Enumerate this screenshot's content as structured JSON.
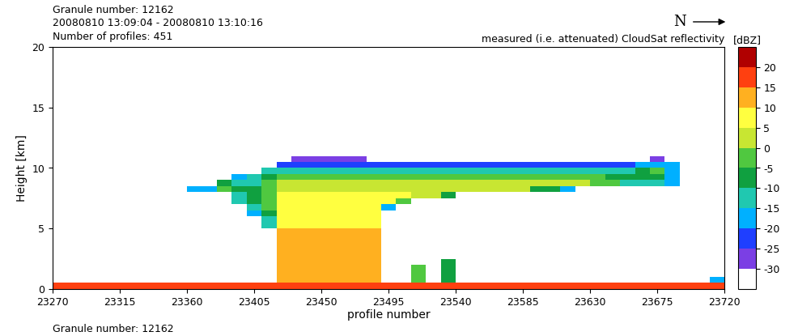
{
  "chart_data": {
    "type": "heatmap",
    "title": "measured (i.e. attenuated) CloudSat reflectivity",
    "header": [
      "Granule number: 12162",
      "20080810 13:09:04 - 20080810 13:10:16",
      "Number of profiles: 451"
    ],
    "footer": "Granule number: 12162",
    "north_label": "N",
    "x_label": "profile number",
    "y_label": "Height [km]",
    "xlim": [
      23270,
      23720
    ],
    "ylim": [
      0,
      20
    ],
    "xticks": [
      23270,
      23315,
      23360,
      23405,
      23450,
      23495,
      23540,
      23585,
      23630,
      23675,
      23720
    ],
    "yticks": [
      0,
      5,
      10,
      15,
      20
    ],
    "x_edges": [
      23270,
      23280,
      23290,
      23300,
      23310,
      23320,
      23330,
      23340,
      23350,
      23360,
      23370,
      23380,
      23390,
      23400,
      23410,
      23420,
      23430,
      23440,
      23450,
      23460,
      23470,
      23480,
      23490,
      23500,
      23510,
      23520,
      23530,
      23540,
      23550,
      23560,
      23570,
      23580,
      23590,
      23600,
      23610,
      23620,
      23630,
      23640,
      23650,
      23660,
      23670,
      23680,
      23690,
      23700,
      23710,
      23720
    ],
    "y_edges": [
      0,
      0.5,
      1,
      1.5,
      2,
      2.5,
      3,
      3.5,
      4,
      4.5,
      5,
      5.5,
      6,
      6.5,
      7,
      7.5,
      8,
      8.5,
      9,
      9.5,
      10,
      10.5,
      11
    ],
    "cells": [
      [
        17,
        17,
        17,
        17,
        17,
        17,
        17,
        17,
        17,
        17,
        17,
        17,
        17,
        17,
        17,
        17,
        17,
        17,
        17,
        17,
        17,
        17,
        17,
        17,
        17,
        17,
        17,
        17,
        17,
        17,
        17,
        17,
        17,
        17,
        17,
        17,
        17,
        17,
        17,
        17,
        17,
        17,
        17,
        17,
        17
      ],
      [
        null,
        null,
        null,
        null,
        null,
        null,
        null,
        null,
        null,
        null,
        null,
        null,
        null,
        null,
        null,
        10,
        12,
        12,
        12,
        12,
        12,
        10,
        null,
        null,
        -5,
        null,
        -8,
        null,
        null,
        null,
        null,
        null,
        null,
        null,
        null,
        null,
        null,
        null,
        null,
        null,
        null,
        null,
        null,
        null,
        -20
      ],
      [
        null,
        null,
        null,
        null,
        null,
        null,
        null,
        null,
        null,
        null,
        null,
        null,
        null,
        null,
        null,
        10,
        12,
        12,
        12,
        12,
        12,
        10,
        null,
        null,
        -5,
        null,
        -8,
        null,
        null,
        null,
        null,
        null,
        null,
        null,
        null,
        null,
        null,
        null,
        null,
        null,
        null,
        null,
        null,
        null,
        null
      ],
      [
        null,
        null,
        null,
        null,
        null,
        null,
        null,
        null,
        null,
        null,
        null,
        null,
        null,
        null,
        null,
        10,
        12,
        12,
        12,
        12,
        12,
        10,
        null,
        null,
        -5,
        null,
        -8,
        null,
        null,
        null,
        null,
        null,
        null,
        null,
        null,
        null,
        null,
        null,
        null,
        null,
        null,
        null,
        null,
        null,
        null
      ],
      [
        null,
        null,
        null,
        null,
        null,
        null,
        null,
        null,
        null,
        null,
        null,
        null,
        null,
        null,
        null,
        10,
        12,
        12,
        12,
        12,
        12,
        10,
        null,
        null,
        null,
        null,
        -10,
        null,
        null,
        null,
        null,
        null,
        null,
        null,
        null,
        null,
        null,
        null,
        null,
        null,
        null,
        null,
        null,
        null,
        null
      ],
      [
        null,
        null,
        null,
        null,
        null,
        null,
        null,
        null,
        null,
        null,
        null,
        null,
        null,
        null,
        null,
        10,
        12,
        12,
        12,
        12,
        12,
        10,
        null,
        null,
        null,
        null,
        null,
        null,
        null,
        null,
        null,
        null,
        null,
        null,
        null,
        null,
        null,
        null,
        null,
        null,
        null,
        null,
        null,
        null,
        null
      ],
      [
        null,
        null,
        null,
        null,
        null,
        null,
        null,
        null,
        null,
        null,
        null,
        null,
        null,
        null,
        null,
        10,
        12,
        12,
        12,
        12,
        12,
        10,
        null,
        null,
        null,
        null,
        null,
        null,
        null,
        null,
        null,
        null,
        null,
        null,
        null,
        null,
        null,
        null,
        null,
        null,
        null,
        null,
        null,
        null,
        null
      ],
      [
        null,
        null,
        null,
        null,
        null,
        null,
        null,
        null,
        null,
        null,
        null,
        null,
        null,
        null,
        null,
        10,
        12,
        12,
        12,
        12,
        12,
        10,
        null,
        null,
        null,
        null,
        null,
        null,
        null,
        null,
        null,
        null,
        null,
        null,
        null,
        null,
        null,
        null,
        null,
        null,
        null,
        null,
        null,
        null,
        null
      ],
      [
        null,
        null,
        null,
        null,
        null,
        null,
        null,
        null,
        null,
        null,
        null,
        null,
        null,
        null,
        null,
        10,
        12,
        12,
        12,
        12,
        12,
        10,
        null,
        null,
        null,
        null,
        null,
        null,
        null,
        null,
        null,
        null,
        null,
        null,
        null,
        null,
        null,
        null,
        null,
        null,
        null,
        null,
        null,
        null,
        null
      ],
      [
        null,
        null,
        null,
        null,
        null,
        null,
        null,
        null,
        null,
        null,
        null,
        null,
        null,
        null,
        null,
        10,
        12,
        12,
        12,
        12,
        12,
        10,
        null,
        null,
        null,
        null,
        null,
        null,
        null,
        null,
        null,
        null,
        null,
        null,
        null,
        null,
        null,
        null,
        null,
        null,
        null,
        null,
        null,
        null,
        null
      ],
      [
        null,
        null,
        null,
        null,
        null,
        null,
        null,
        null,
        null,
        null,
        null,
        null,
        null,
        null,
        -15,
        8,
        8,
        8,
        8,
        8,
        8,
        8,
        null,
        null,
        null,
        null,
        null,
        null,
        null,
        null,
        null,
        null,
        null,
        null,
        null,
        null,
        null,
        null,
        null,
        null,
        null,
        null,
        null,
        null,
        null
      ],
      [
        null,
        null,
        null,
        null,
        null,
        null,
        null,
        null,
        null,
        null,
        null,
        null,
        null,
        null,
        -15,
        8,
        8,
        8,
        8,
        8,
        8,
        8,
        null,
        null,
        null,
        null,
        null,
        null,
        null,
        null,
        null,
        null,
        null,
        null,
        null,
        null,
        null,
        null,
        null,
        null,
        null,
        null,
        null,
        null,
        null
      ],
      [
        null,
        null,
        null,
        null,
        null,
        null,
        null,
        null,
        null,
        null,
        null,
        null,
        null,
        -18,
        -10,
        8,
        8,
        8,
        8,
        8,
        8,
        8,
        null,
        null,
        null,
        null,
        null,
        null,
        null,
        null,
        null,
        null,
        null,
        null,
        null,
        null,
        null,
        null,
        null,
        null,
        null,
        null,
        null,
        null,
        null
      ],
      [
        null,
        null,
        null,
        null,
        null,
        null,
        null,
        null,
        null,
        null,
        null,
        null,
        null,
        -15,
        -5,
        6,
        6,
        6,
        6,
        6,
        6,
        6,
        -20,
        null,
        null,
        null,
        null,
        null,
        null,
        null,
        null,
        null,
        null,
        null,
        null,
        null,
        null,
        null,
        null,
        null,
        null,
        null,
        null,
        null,
        null
      ],
      [
        null,
        null,
        null,
        null,
        null,
        null,
        null,
        null,
        null,
        null,
        null,
        null,
        -15,
        -10,
        -5,
        5,
        5,
        5,
        5,
        5,
        5,
        5,
        5,
        -5,
        null,
        null,
        null,
        null,
        null,
        null,
        null,
        null,
        null,
        null,
        null,
        null,
        null,
        null,
        null,
        null,
        null,
        null,
        null,
        null,
        null
      ],
      [
        null,
        null,
        null,
        null,
        null,
        null,
        null,
        null,
        null,
        null,
        null,
        null,
        -12,
        -8,
        -3,
        5,
        5,
        5,
        5,
        5,
        5,
        5,
        5,
        5,
        0,
        0,
        -10,
        null,
        null,
        null,
        null,
        null,
        null,
        null,
        null,
        null,
        null,
        null,
        null,
        null,
        null,
        null,
        null,
        null,
        null
      ],
      [
        null,
        null,
        null,
        null,
        null,
        null,
        null,
        null,
        null,
        -20,
        -20,
        -5,
        -10,
        -8,
        -3,
        4,
        4,
        4,
        4,
        4,
        4,
        4,
        4,
        3,
        3,
        3,
        3,
        3,
        3,
        0,
        0,
        0,
        -8,
        -8,
        -20,
        null,
        null,
        null,
        null,
        null,
        null,
        null,
        null,
        null,
        null
      ],
      [
        null,
        null,
        null,
        null,
        null,
        null,
        null,
        null,
        null,
        null,
        null,
        -8,
        -15,
        -12,
        -5,
        2,
        2,
        2,
        2,
        2,
        2,
        3,
        3,
        3,
        3,
        3,
        3,
        3,
        3,
        3,
        0,
        0,
        0,
        0,
        0,
        0,
        -5,
        -5,
        -12,
        -12,
        -15,
        -20,
        null,
        null,
        null
      ],
      [
        null,
        null,
        null,
        null,
        null,
        null,
        null,
        null,
        null,
        null,
        null,
        null,
        -20,
        -15,
        -8,
        -3,
        -3,
        -3,
        -3,
        -3,
        -3,
        -3,
        -3,
        -3,
        -3,
        -3,
        -3,
        -3,
        -3,
        -5,
        -5,
        -5,
        -5,
        -5,
        -5,
        -5,
        -5,
        -8,
        -8,
        -8,
        -8,
        -20,
        null,
        null,
        null
      ],
      [
        null,
        null,
        null,
        null,
        null,
        null,
        null,
        null,
        null,
        null,
        null,
        null,
        null,
        null,
        -15,
        -12,
        -12,
        -12,
        -12,
        -12,
        -12,
        -12,
        -12,
        -12,
        -12,
        -12,
        -12,
        -12,
        -12,
        -12,
        -12,
        -12,
        -12,
        -12,
        -12,
        -12,
        -12,
        -12,
        -12,
        -10,
        -5,
        -18,
        null,
        null,
        null
      ],
      [
        null,
        null,
        null,
        null,
        null,
        null,
        null,
        null,
        null,
        null,
        null,
        null,
        null,
        null,
        null,
        -22,
        -22,
        -22,
        -22,
        -22,
        -22,
        -22,
        -22,
        -25,
        -25,
        -25,
        -25,
        -25,
        -25,
        -25,
        -25,
        -25,
        -25,
        -25,
        -25,
        -25,
        -25,
        -25,
        -25,
        -20,
        -20,
        -20,
        null,
        null,
        null
      ],
      [
        null,
        null,
        null,
        null,
        null,
        null,
        null,
        null,
        null,
        null,
        null,
        null,
        null,
        null,
        null,
        null,
        -28,
        -28,
        -28,
        -28,
        -28,
        null,
        null,
        null,
        null,
        null,
        null,
        null,
        null,
        null,
        null,
        null,
        null,
        null,
        null,
        null,
        null,
        null,
        null,
        null,
        -28,
        null,
        null,
        null,
        null
      ]
    ],
    "colorbar": {
      "label": "[dBZ]",
      "range": [
        -35,
        25
      ],
      "ticks": [
        -30,
        -25,
        -20,
        -15,
        -10,
        -5,
        0,
        5,
        10,
        15,
        20
      ],
      "colors": [
        "#ffffff",
        "#7b3fe4",
        "#1f3fff",
        "#00b0ff",
        "#20c8b0",
        "#10a040",
        "#50c840",
        "#c8e632",
        "#ffff40",
        "#ffb020",
        "#ff4010",
        "#b00000"
      ]
    }
  }
}
